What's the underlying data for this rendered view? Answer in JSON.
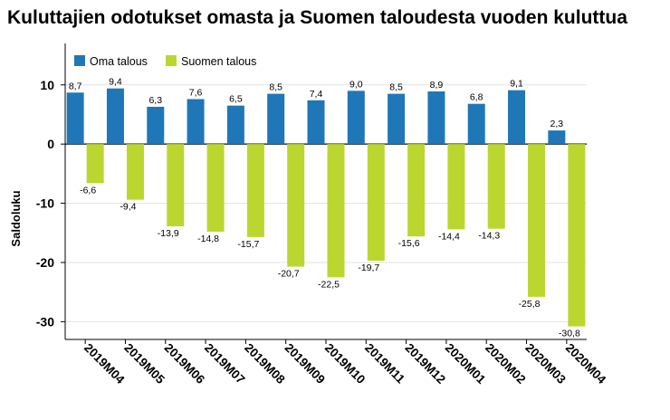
{
  "chart_data": {
    "type": "bar",
    "title": "Kuluttajien odotukset omasta ja Suomen taloudesta vuoden kuluttua",
    "xlabel": "",
    "ylabel": "Saldoluku",
    "ylim": [
      -33,
      17
    ],
    "yticks": [
      10,
      0,
      -10,
      -20,
      -30
    ],
    "grid": true,
    "legend_position": "top-left",
    "categories": [
      "2019M04",
      "2019M05",
      "2019M06",
      "2019M07",
      "2019M08",
      "2019M09",
      "2019M10",
      "2019M11",
      "2019M12",
      "2020M01",
      "2020M02",
      "2020M03",
      "2020M04"
    ],
    "series": [
      {
        "name": "Oma talous",
        "color": "#1f77b8",
        "values": [
          8.7,
          9.4,
          6.3,
          7.6,
          6.5,
          8.5,
          7.4,
          9.0,
          8.5,
          8.9,
          6.8,
          9.1,
          2.3
        ],
        "labels": [
          "8,7",
          "9,4",
          "6,3",
          "7,6",
          "6,5",
          "8,5",
          "7,4",
          "9,0",
          "8,5",
          "8,9",
          "6,8",
          "9,1",
          "2,3"
        ]
      },
      {
        "name": "Suomen talous",
        "color": "#bcd630",
        "values": [
          -6.6,
          -9.4,
          -13.9,
          -14.8,
          -15.7,
          -20.7,
          -22.5,
          -19.7,
          -15.6,
          -14.4,
          -14.3,
          -25.8,
          -30.8
        ],
        "labels": [
          "-6,6",
          "-9,4",
          "-13,9",
          "-14,8",
          "-15,7",
          "-20,7",
          "-22,5",
          "-19,7",
          "-15,6",
          "-14,4",
          "-14,3",
          "-25,8",
          "-30,8"
        ]
      }
    ]
  }
}
